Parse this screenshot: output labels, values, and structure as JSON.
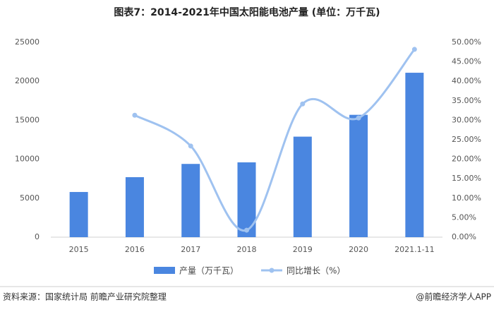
{
  "chart_data": {
    "type": "bar-line",
    "title": "图表7：2014-2021年中国太阳能电池产量 (单位：万千瓦)",
    "categories": [
      "2015",
      "2016",
      "2017",
      "2018",
      "2019",
      "2020",
      "2021.1-11"
    ],
    "series": [
      {
        "name": "产量（万千瓦）",
        "type": "bar",
        "color": "#4a86e0",
        "values": [
          5800,
          7700,
          9400,
          9600,
          12900,
          15700,
          21100
        ]
      },
      {
        "name": "同比增长（%）",
        "type": "line",
        "axis": "y2",
        "color": "#9fc2f0",
        "values": [
          null,
          31.3,
          23.4,
          1.8,
          34.2,
          30.6,
          48.2
        ]
      }
    ],
    "ylim": [
      0,
      25000
    ],
    "yticks": [
      0,
      5000,
      10000,
      15000,
      20000,
      25000
    ],
    "y2lim": [
      0,
      50
    ],
    "y2ticks": [
      {
        "value": 0,
        "label": "0.00%"
      },
      {
        "value": 5,
        "label": "5.00%"
      },
      {
        "value": 10,
        "label": "10.00%"
      },
      {
        "value": 15,
        "label": "15.00%"
      },
      {
        "value": 20,
        "label": "20.00%"
      },
      {
        "value": 25,
        "label": "25.00%"
      },
      {
        "value": 30,
        "label": "30.00%"
      },
      {
        "value": 35,
        "label": "35.00%"
      },
      {
        "value": 40,
        "label": "40.00%"
      },
      {
        "value": 45,
        "label": "45.00%"
      },
      {
        "value": 50,
        "label": "50.00%"
      }
    ],
    "grid": false,
    "legend": "bottom"
  },
  "source": "资料来源：国家统计局 前瞻产业研究院整理",
  "credit": "@前瞻经济学人APP"
}
